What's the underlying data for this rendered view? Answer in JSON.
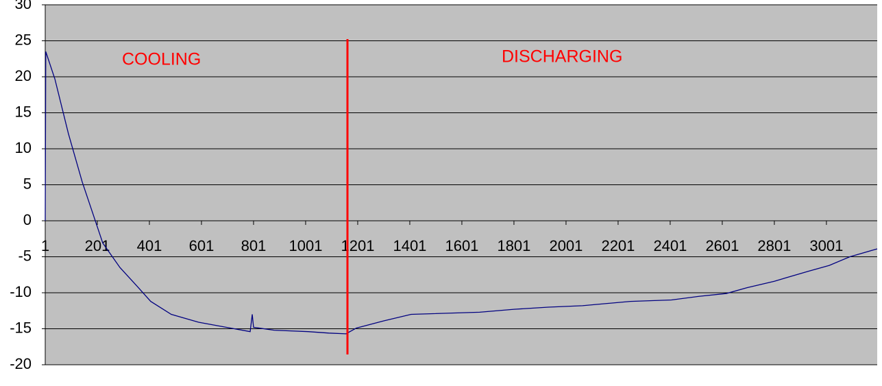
{
  "chart_data": {
    "type": "line",
    "annotations": [
      "COOLING",
      "DISCHARGING"
    ],
    "x": [
      1,
      2,
      3,
      38,
      90,
      143,
      183,
      222,
      288,
      354,
      406,
      485,
      590,
      696,
      788,
      796,
      801,
      880,
      1011,
      1090,
      1156,
      1196,
      1301,
      1406,
      1669,
      1801,
      1933,
      2064,
      2248,
      2406,
      2511,
      2617,
      2696,
      2801,
      2933,
      3012,
      3091,
      3196
    ],
    "series": [
      {
        "color": "#000080",
        "values": [
          0,
          11.5,
          23.5,
          19.7,
          12.1,
          5.4,
          1.1,
          -3.1,
          -6.5,
          -9.1,
          -11.2,
          -13,
          -14.1,
          -14.8,
          -15.4,
          -13,
          -14.8,
          -15.2,
          -15.4,
          -15.6,
          -15.7,
          -14.9,
          -13.9,
          -13,
          -12.7,
          -12.3,
          -12,
          -11.8,
          -11.2,
          -11,
          -10.5,
          -10.1,
          -9.3,
          -8.4,
          -7,
          -6.2,
          -5,
          -3.9
        ]
      }
    ],
    "xlim": [
      1,
      3196
    ],
    "xticks": [
      1,
      201,
      401,
      601,
      801,
      1001,
      1201,
      1401,
      1601,
      1801,
      2001,
      2201,
      2401,
      2601,
      2801,
      3001
    ],
    "ylim": [
      -20,
      30
    ],
    "yticks": [
      -20,
      -15,
      -10,
      -5,
      0,
      5,
      10,
      15,
      20,
      25,
      30
    ],
    "grid": true,
    "background": "#c0c0c0",
    "annotation_color": "#ff0000"
  }
}
